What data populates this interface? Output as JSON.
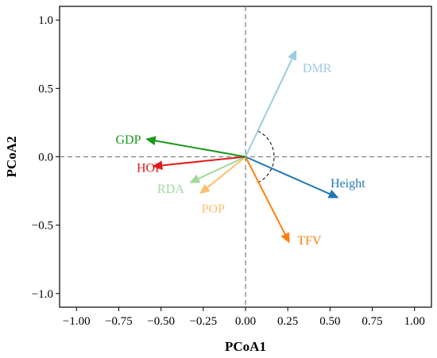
{
  "chart_data": {
    "type": "scatter",
    "subtype": "biplot-vectors",
    "title": "",
    "xlabel": "PCoA1",
    "ylabel": "PCoA2",
    "xlim": [
      -1.1,
      1.1
    ],
    "ylim": [
      -1.1,
      1.1
    ],
    "x_ticks": [
      -1.0,
      -0.75,
      -0.5,
      -0.25,
      0.0,
      0.25,
      0.5,
      0.75,
      1.0
    ],
    "x_tick_labels": [
      "−1.00",
      "−0.75",
      "−0.50",
      "−0.25",
      "0.00",
      "0.25",
      "0.50",
      "0.75",
      "1.00"
    ],
    "y_ticks": [
      -1.0,
      -0.5,
      0.0,
      0.5,
      1.0
    ],
    "y_tick_labels": [
      "−1.0",
      "−0.5",
      "0.0",
      "0.5",
      "1.0"
    ],
    "grid": false,
    "reference_lines": "dashed lines at x = 0 and y = 0",
    "angle_arc": "dashed arc between DMR and TFV vectors",
    "vectors": [
      {
        "name": "DMR",
        "x": 0.3,
        "y": 0.78,
        "color": "#9ecae1"
      },
      {
        "name": "Height",
        "x": 0.55,
        "y": -0.3,
        "color": "#1f78b4"
      },
      {
        "name": "TFV",
        "x": 0.26,
        "y": -0.63,
        "color": "#ff7f0e"
      },
      {
        "name": "POP",
        "x": -0.27,
        "y": -0.27,
        "color": "#fdbf6f"
      },
      {
        "name": "RDA",
        "x": -0.33,
        "y": -0.19,
        "color": "#a1d99b"
      },
      {
        "name": "HOP",
        "x": -0.55,
        "y": -0.07,
        "color": "#e31a1c"
      },
      {
        "name": "GDP",
        "x": -0.59,
        "y": 0.13,
        "color": "#1a9a1a"
      }
    ]
  }
}
